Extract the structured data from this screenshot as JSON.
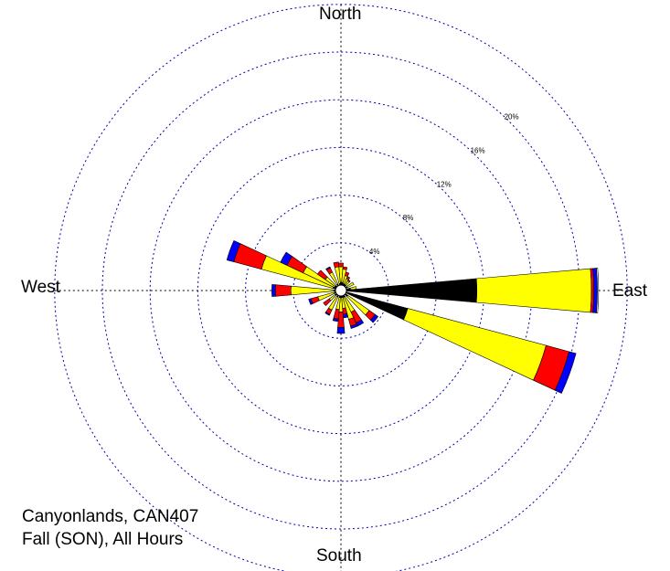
{
  "chart_data": {
    "type": "wind-rose",
    "title_lines": [
      "Canyonlands, CAN407",
      "Fall (SON), All Hours"
    ],
    "directions": {
      "north": "North",
      "south": "South",
      "east": "East",
      "west": "West"
    },
    "radial_ticks": [
      4,
      8,
      12,
      16,
      20
    ],
    "radial_tick_labels": [
      "4%",
      "8%",
      "12%",
      "16%",
      "20%"
    ],
    "grid": true,
    "sector_width_deg": 10,
    "speed_class_colors": [
      "#000000",
      "#ffff00",
      "#ff0000",
      "#0000ff",
      "#ffffff"
    ],
    "sectors": [
      {
        "direction_deg": 0,
        "cumulative_pct": [
          0.7,
          2.0,
          2.3
        ]
      },
      {
        "direction_deg": 10,
        "cumulative_pct": [
          0.7,
          1.8,
          2.0
        ]
      },
      {
        "direction_deg": 20,
        "cumulative_pct": [
          0.6,
          1.3,
          1.6
        ]
      },
      {
        "direction_deg": 30,
        "cumulative_pct": [
          0.6,
          1.1,
          1.3
        ]
      },
      {
        "direction_deg": 40,
        "cumulative_pct": [
          0.6,
          1.0,
          1.1
        ]
      },
      {
        "direction_deg": 60,
        "cumulative_pct": [
          0.6,
          1.2
        ]
      },
      {
        "direction_deg": 80,
        "cumulative_pct": [
          0.8,
          1.3
        ]
      },
      {
        "direction_deg": 90,
        "cumulative_pct": [
          11.4,
          21.0,
          21.2,
          21.5,
          21.6
        ]
      },
      {
        "direction_deg": 110,
        "cumulative_pct": [
          5.8,
          17.8,
          19.8,
          20.4
        ]
      },
      {
        "direction_deg": 130,
        "cumulative_pct": [
          0.7,
          2.9,
          3.5,
          3.8
        ]
      },
      {
        "direction_deg": 150,
        "cumulative_pct": [
          0.6,
          2.0,
          3.0,
          3.3
        ]
      },
      {
        "direction_deg": 160,
        "cumulative_pct": [
          0.6,
          2.5,
          3.1,
          3.3
        ]
      },
      {
        "direction_deg": 170,
        "cumulative_pct": [
          0.6,
          1.5,
          2.0,
          2.3
        ]
      },
      {
        "direction_deg": 180,
        "cumulative_pct": [
          0.6,
          1.8,
          3.1,
          3.6
        ]
      },
      {
        "direction_deg": 190,
        "cumulative_pct": [
          0.6,
          1.6,
          2.4,
          2.6
        ]
      },
      {
        "direction_deg": 210,
        "cumulative_pct": [
          0.6,
          1.8,
          2.2,
          2.3
        ]
      },
      {
        "direction_deg": 230,
        "cumulative_pct": [
          0.6,
          1.2,
          1.8
        ]
      },
      {
        "direction_deg": 250,
        "cumulative_pct": [
          0.6,
          2.0,
          2.6,
          2.8
        ]
      },
      {
        "direction_deg": 270,
        "cumulative_pct": [
          0.6,
          4.2,
          5.5,
          5.8
        ]
      },
      {
        "direction_deg": 290,
        "cumulative_pct": [
          0.7,
          6.9,
          9.3,
          9.9
        ]
      },
      {
        "direction_deg": 300,
        "cumulative_pct": [
          0.6,
          3.5,
          5.0,
          5.6
        ]
      },
      {
        "direction_deg": 310,
        "cumulative_pct": [
          0.6,
          1.6,
          2.4
        ]
      },
      {
        "direction_deg": 330,
        "cumulative_pct": [
          0.6,
          1.7,
          2.1,
          2.2
        ]
      },
      {
        "direction_deg": 350,
        "cumulative_pct": [
          0.6,
          2.0,
          2.4
        ]
      }
    ]
  }
}
